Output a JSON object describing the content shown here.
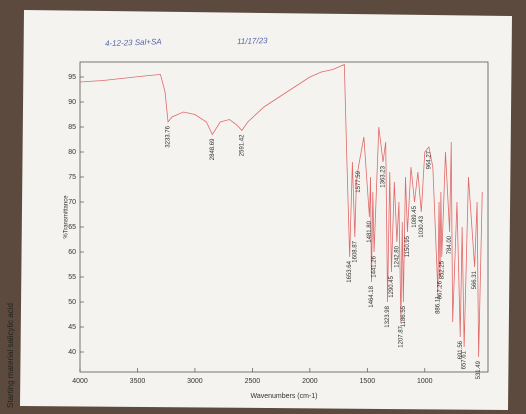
{
  "chart_data": {
    "type": "line",
    "side_note": "Starting material salicylic acid",
    "annotations": [
      "4-12-23 Sal+SA",
      "11/17/23"
    ],
    "x_label": "Wavenumbers (cm-1)",
    "y_label": "%Transmittance",
    "color": "#e06a6a",
    "x": [
      4000,
      3800,
      3600,
      3400,
      3300,
      3260,
      3233.76,
      3200,
      3100,
      3000,
      2900,
      2848.69,
      2780,
      2700,
      2640,
      2591.42,
      2540,
      2400,
      2200,
      2000,
      1900,
      1800,
      1700,
      1680,
      1653.64,
      1630,
      1608.87,
      1595,
      1577.59,
      1530,
      1481.8,
      1472,
      1464.18,
      1452,
      1441.26,
      1400,
      1363.23,
      1340,
      1323.98,
      1305,
      1290.45,
      1265,
      1242.8,
      1225,
      1207.87,
      1196,
      1186.55,
      1168,
      1150.95,
      1120,
      1089.45,
      1060,
      1030.43,
      1000,
      964.27,
      930,
      886.11,
      876,
      867.26,
      860,
      852.25,
      820,
      784,
      770,
      757.61,
      720,
      691.56,
      675,
      657.61,
      620,
      566.31,
      545,
      531.49,
      500
    ],
    "values": [
      94,
      94.3,
      94.8,
      95.3,
      95.5,
      92,
      86,
      87,
      88,
      87.5,
      86,
      83.5,
      86,
      86.5,
      85.5,
      84.3,
      86,
      89,
      92,
      95,
      96,
      96.5,
      97.5,
      80,
      59,
      78,
      63,
      74,
      77,
      83,
      67,
      75,
      54,
      72,
      60,
      85,
      78,
      82,
      50,
      76,
      56,
      74,
      62,
      70,
      46,
      66,
      50,
      75,
      64,
      77,
      70,
      76,
      68,
      80,
      81,
      77,
      52,
      70,
      55,
      72,
      59,
      80,
      64,
      82,
      46,
      70,
      43,
      65,
      41,
      75,
      57,
      70,
      39,
      72
    ],
    "peaks": [
      {
        "x": 3233.76,
        "y": 86,
        "label": "3233.76"
      },
      {
        "x": 2848.69,
        "y": 83.5,
        "label": "2848.69"
      },
      {
        "x": 2591.42,
        "y": 84.3,
        "label": "2591.42"
      },
      {
        "x": 1653.64,
        "y": 59,
        "label": "1653.64"
      },
      {
        "x": 1608.87,
        "y": 63,
        "label": "1608.87"
      },
      {
        "x": 1577.59,
        "y": 77,
        "label": "1577.59"
      },
      {
        "x": 1481.8,
        "y": 67,
        "label": "1481.80"
      },
      {
        "x": 1464.18,
        "y": 54,
        "label": "1464.18"
      },
      {
        "x": 1441.26,
        "y": 60,
        "label": "1441.26"
      },
      {
        "x": 1363.23,
        "y": 78,
        "label": "1363.23"
      },
      {
        "x": 1323.98,
        "y": 50,
        "label": "1323.98"
      },
      {
        "x": 1290.45,
        "y": 56,
        "label": "1290.45"
      },
      {
        "x": 1242.8,
        "y": 62,
        "label": "1242.80"
      },
      {
        "x": 1207.87,
        "y": 46,
        "label": "1207.87"
      },
      {
        "x": 1186.55,
        "y": 50,
        "label": "1186.55"
      },
      {
        "x": 1150.95,
        "y": 64,
        "label": "1150.95"
      },
      {
        "x": 1089.45,
        "y": 70,
        "label": "1089.45"
      },
      {
        "x": 1030.43,
        "y": 68,
        "label": "1030.43"
      },
      {
        "x": 964.27,
        "y": 81,
        "label": "964.27"
      },
      {
        "x": 886.11,
        "y": 52,
        "label": "886.11"
      },
      {
        "x": 867.26,
        "y": 55,
        "label": "867.26"
      },
      {
        "x": 852.25,
        "y": 59,
        "label": "852.25"
      },
      {
        "x": 784,
        "y": 64,
        "label": "784.00"
      },
      {
        "x": 691.56,
        "y": 43,
        "label": "691.56"
      },
      {
        "x": 657.61,
        "y": 41,
        "label": "657.61"
      },
      {
        "x": 566.31,
        "y": 57,
        "label": "566.31"
      },
      {
        "x": 531.49,
        "y": 39,
        "label": "531.49"
      }
    ],
    "xlim": [
      4000,
      450
    ],
    "xticks": [
      4000,
      3500,
      3000,
      2500,
      2000,
      1500,
      1000
    ],
    "ylim": [
      36,
      98
    ],
    "yticks": [
      40,
      45,
      50,
      55,
      60,
      65,
      70,
      75,
      80,
      85,
      90,
      95
    ]
  }
}
